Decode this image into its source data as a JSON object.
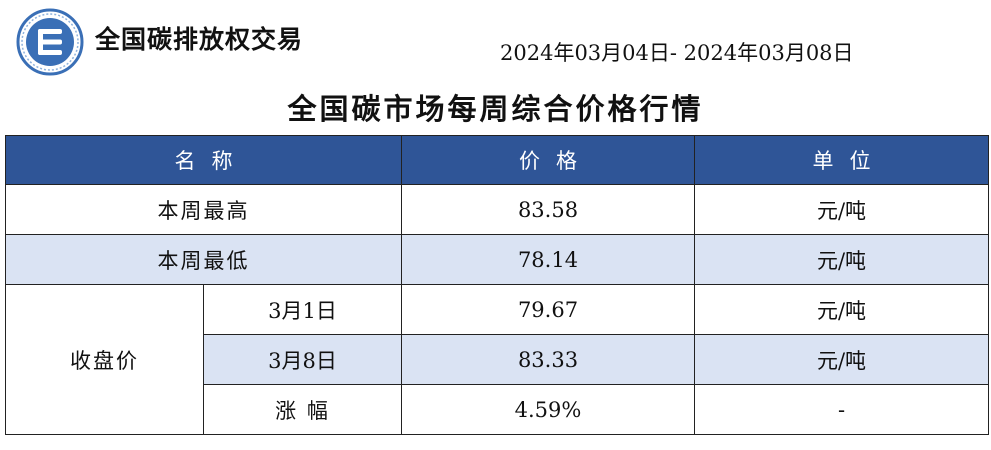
{
  "header": {
    "brand_name": "全国碳排放权交易",
    "date_range": "2024年03月04日- 2024年03月08日",
    "report_title": "全国碳市场每周综合价格行情"
  },
  "table": {
    "columns": {
      "name": "名称",
      "price": "价格",
      "unit": "单位"
    },
    "rows": {
      "weekly_high": {
        "label": "本周最高",
        "price": "83.58",
        "unit": "元/吨"
      },
      "weekly_low": {
        "label": "本周最低",
        "price": "78.14",
        "unit": "元/吨"
      },
      "closing": {
        "group_label": "收盘价",
        "start": {
          "label": "3月1日",
          "price": "79.67",
          "unit": "元/吨"
        },
        "end": {
          "label": "3月8日",
          "price": "83.33",
          "unit": "元/吨"
        },
        "change": {
          "label": "涨 幅",
          "price": "4.59%",
          "unit": "-"
        }
      }
    }
  },
  "colors": {
    "header_fill": "#2f5597",
    "shaded_row_fill": "#dae3f3",
    "logo_blue": "#3a6fb6"
  }
}
